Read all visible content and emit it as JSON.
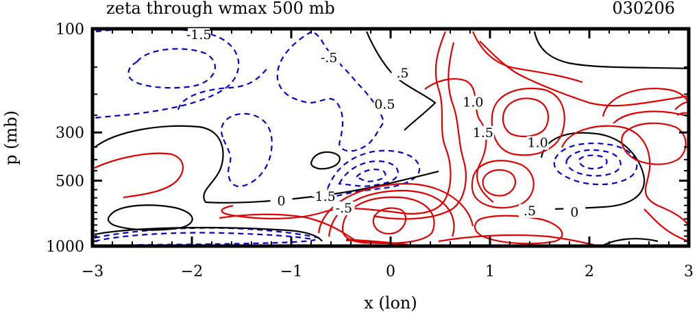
{
  "chart_data": {
    "type": "contour",
    "title": "zeta through wmax 500 mb",
    "date_label": "030206",
    "xlabel": "x (lon)",
    "ylabel": "p (mb)",
    "xlim": [
      -3,
      3
    ],
    "ylim": [
      1000,
      100
    ],
    "y_scale": "log",
    "x_ticks": [
      -3,
      -2,
      -1,
      0,
      1,
      2,
      3
    ],
    "x_tick_labels": [
      "−3",
      "−2",
      "−1",
      "0",
      "1",
      "2",
      "3"
    ],
    "y_ticks": [
      100,
      300,
      500,
      1000
    ],
    "y_tick_labels": [
      "100",
      "300",
      "500",
      "1000"
    ],
    "contour_labels": [
      {
        "text": "-1.5",
        "x": -1.93,
        "p": 110
      },
      {
        "text": "-.5",
        "x": -0.62,
        "p": 140
      },
      {
        "text": ".5",
        "x": 0.12,
        "p": 165
      },
      {
        "text": "0.5",
        "x": -0.06,
        "p": 230
      },
      {
        "text": "1.0",
        "x": 0.83,
        "p": 225
      },
      {
        "text": "1.5",
        "x": 0.93,
        "p": 310
      },
      {
        "text": "1.0",
        "x": 1.48,
        "p": 345
      },
      {
        "text": "0",
        "x": -1.1,
        "p": 640
      },
      {
        "text": "-1.5",
        "x": -0.68,
        "p": 610
      },
      {
        "text": "-.5",
        "x": -0.47,
        "p": 690
      },
      {
        "text": ".5",
        "x": 1.4,
        "p": 710
      },
      {
        "text": "0",
        "x": 1.85,
        "p": 720
      }
    ],
    "grid": false,
    "colors": {
      "positive": "#e00000",
      "negative": "#0000d0",
      "zero": "#000000"
    }
  }
}
